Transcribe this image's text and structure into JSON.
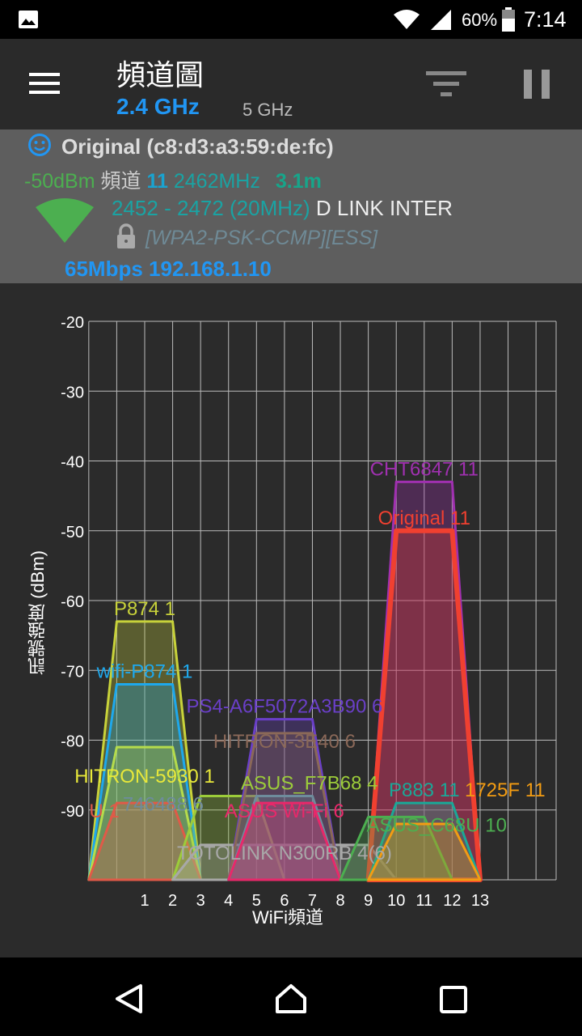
{
  "status_bar": {
    "battery": "60%",
    "time": "7:14"
  },
  "toolbar": {
    "title": "頻道圖",
    "tabs": [
      {
        "label": "2.4 GHz",
        "active": true
      },
      {
        "label": "5 GHz",
        "active": false
      }
    ]
  },
  "connected": {
    "ssid_line": "Original (c8:d3:a3:59:de:fc)",
    "signal": "-50dBm",
    "channel_label": "頻道",
    "channel": "11",
    "frequency": "2462MHz",
    "distance": "3.1m",
    "range": "2452 - 2472 (20MHz)",
    "vendor": "D LINK INTER",
    "security": "[WPA2-PSK-CCMP][ESS]",
    "link": "65Mbps 192.168.1.10"
  },
  "chart_data": {
    "type": "area",
    "xlabel": "WiFi頻道",
    "ylabel": "訊號強度 (dBm)",
    "ylim": [
      -100,
      -20
    ],
    "yticks": [
      "-20",
      "-30",
      "-40",
      "-50",
      "-60",
      "-70",
      "-80",
      "-90"
    ],
    "xticks": [
      "1",
      "2",
      "3",
      "4",
      "5",
      "6",
      "7",
      "8",
      "9",
      "10",
      "11",
      "12",
      "13"
    ],
    "grid": true,
    "series": [
      {
        "name": "P874 1",
        "channel": 1,
        "dbm": -63,
        "width_mhz": 20,
        "color": "#c8d23a"
      },
      {
        "name": "wifi-P874 1",
        "channel": 1,
        "dbm": -72,
        "width_mhz": 20,
        "color": "#1ea8ec"
      },
      {
        "name": "HITRON-5930 1",
        "channel": 1,
        "dbm": -81,
        "width_mhz": 20,
        "color": "#b5dc4c",
        "label_color": "#e8e83a"
      },
      {
        "name": "U 1",
        "channel": 1,
        "dbm": -89,
        "width_mhz": 20,
        "color": "#e05a48"
      },
      {
        "name": "ASUS_F7B68 4",
        "channel": 4,
        "dbm": -88,
        "width_mhz": 20,
        "color": "#9ccc3a"
      },
      {
        "name": "TOTOLINK N300RB 4(6)",
        "channel": 6,
        "dbm": -95,
        "width_mhz": 40,
        "color": "#a8a8a8"
      },
      {
        "name": "PS4-A6F5072A3B90 6",
        "channel": 6,
        "dbm": -77,
        "width_mhz": 20,
        "color": "#6a3fc8"
      },
      {
        "name": "HITRON-3E40 6",
        "channel": 6,
        "dbm": -79,
        "width_mhz": 20,
        "color": "#8a6858"
      },
      {
        "name": "746488 6",
        "channel": 6,
        "dbm": -88,
        "width_mhz": 20,
        "color": "#6e8c9c"
      },
      {
        "name": "ASUS Wi-Fi 6",
        "channel": 6,
        "dbm": -89,
        "width_mhz": 20,
        "color": "#e8286a"
      },
      {
        "name": "CHT6847 11",
        "channel": 11,
        "dbm": -43,
        "width_mhz": 20,
        "color": "#a030b0"
      },
      {
        "name": "Original 11",
        "channel": 11,
        "dbm": -50,
        "width_mhz": 20,
        "color": "#f04030",
        "highlight": true
      },
      {
        "name": "P883 11",
        "channel": 11,
        "dbm": -89,
        "width_mhz": 20,
        "color": "#1aa898"
      },
      {
        "name": "ASUS_C68U 10",
        "channel": 10,
        "dbm": -91,
        "width_mhz": 20,
        "color": "#4caf50"
      },
      {
        "name": "1725F 11",
        "channel": 11,
        "dbm": -92,
        "width_mhz": 20,
        "color": "#f39c12"
      }
    ]
  },
  "colors": {
    "accent": "#2196f3",
    "signal_good": "#4caf50",
    "teal": "#1aa3a3"
  }
}
